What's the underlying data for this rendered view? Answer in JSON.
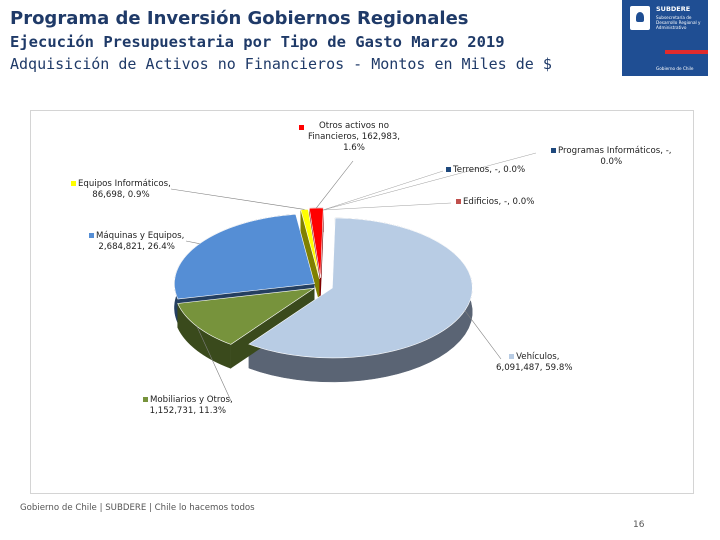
{
  "header": {
    "title": "Programa de Inversión Gobiernos Regionales",
    "subtitle": "Ejecución Presupuestaria por Tipo de Gasto Marzo 2019",
    "subtitle2": "Adquisición de Activos no Financieros - Montos en Miles de $"
  },
  "logo": {
    "name": "SUBDERE",
    "description": "Subsecretaría de Desarrollo Regional y Administrativo",
    "government": "Gobierno de Chile"
  },
  "footer": {
    "text": "Gobierno de Chile | SUBDERE | Chile lo hacemos todos",
    "page": "16"
  },
  "chart_data": {
    "type": "pie",
    "style": "3d-exploded",
    "title": "",
    "slices": [
      {
        "name": "Vehículos",
        "value": "6,091,487",
        "amount": 6091487,
        "percent": 59.8,
        "color": "#b8cce4",
        "side_color": "#5a6474",
        "label_line1": "Vehículos,",
        "label_line2": "6,091,487, 59.8%"
      },
      {
        "name": "Mobiliarios y Otros",
        "value": "1,152,731",
        "amount": 1152731,
        "percent": 11.3,
        "color": "#77933c",
        "side_color": "#3a4a1c",
        "label_line1": "Mobiliarios y Otros,",
        "label_line2": "1,152,731, 11.3%"
      },
      {
        "name": "Máquinas y Equipos",
        "value": "2,684,821",
        "amount": 2684821,
        "percent": 26.4,
        "color": "#558ed5",
        "side_color": "#243f60",
        "label_line1": "Máquinas y Equipos,",
        "label_line2": "2,684,821, 26.4%"
      },
      {
        "name": "Equipos Informáticos",
        "value": "86,698",
        "amount": 86698,
        "percent": 0.9,
        "color": "#ffff00",
        "side_color": "#808000",
        "label_line1": "Equipos Informáticos,",
        "label_line2": "86,698, 0.9%"
      },
      {
        "name": "Otros activos no Financieros",
        "value": "162,983",
        "amount": 162983,
        "percent": 1.6,
        "color": "#ff0000",
        "side_color": "#7f0000",
        "label_line1": "Otros activos no",
        "label_line2": "Financieros, 162,983,",
        "label_line3": "1.6%"
      },
      {
        "name": "Terrenos",
        "value": "-",
        "amount": 0,
        "percent": 0.0,
        "color": "#1f497d",
        "side_color": "#1f497d",
        "label_line1": "Terrenos, -, 0.0%"
      },
      {
        "name": "Programas Informáticos",
        "value": "-",
        "amount": 0,
        "percent": 0.0,
        "color": "#1f497d",
        "side_color": "#1f497d",
        "label_line1": "Programas Informáticos, -,",
        "label_line2": "0.0%"
      },
      {
        "name": "Edificios",
        "value": "-",
        "amount": 0,
        "percent": 0.0,
        "color": "#c0504d",
        "side_color": "#c0504d",
        "label_line1": "Edificios, -, 0.0%"
      }
    ]
  }
}
